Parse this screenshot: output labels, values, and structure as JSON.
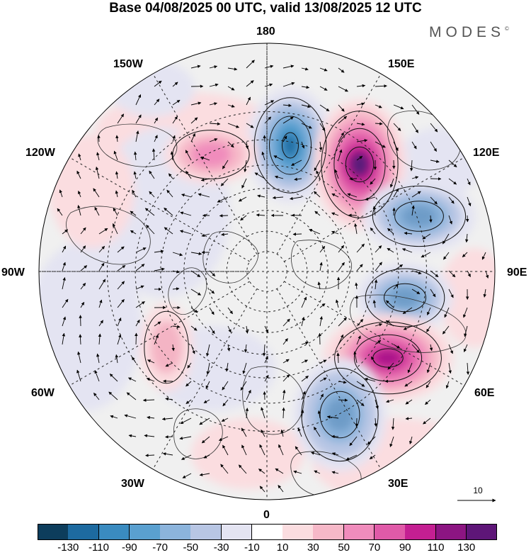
{
  "title": "Base 04/08/2025 00 UTC, valid 13/08/2025 12 UTC",
  "brand": {
    "name": "MODES",
    "mark": "©"
  },
  "map": {
    "projection": "north-polar-stereographic",
    "longitude_labels": {
      "lon_180": "180",
      "lon_150e": "150E",
      "lon_120e": "120E",
      "lon_90e": "90E",
      "lon_60e": "60E",
      "lon_30e": "30E",
      "lon_0": "0",
      "lon_30w": "30W",
      "lon_60w": "60W",
      "lon_90w": "90W",
      "lon_120w": "120W",
      "lon_150w": "150W"
    },
    "reference_vector": {
      "label": "10"
    },
    "anomaly_centers": [
      {
        "name": "low-east-siberian-sea",
        "value": -130,
        "color": "#1d6aa0"
      },
      {
        "name": "high-east-siberia",
        "value": 130,
        "color": "#5a1a7a"
      },
      {
        "name": "low-central-siberia",
        "value": -70,
        "color": "#6e9cc8"
      },
      {
        "name": "low-west-siberia",
        "value": -70,
        "color": "#6e9cc8"
      },
      {
        "name": "high-urals",
        "value": 110,
        "color": "#a8168a"
      },
      {
        "name": "low-europe",
        "value": -70,
        "color": "#6e9cc8"
      },
      {
        "name": "high-alaska",
        "value": 50,
        "color": "#f08cbc"
      },
      {
        "name": "high-greenland-sea",
        "value": 30,
        "color": "#f4b4c4"
      }
    ]
  },
  "colorbar": {
    "colors": [
      "#0d3d5c",
      "#1d6aa0",
      "#3a8bc0",
      "#5aa0d0",
      "#8cb4dc",
      "#b8c6e4",
      "#e4e4f2",
      "#ffffff",
      "#fbdde0",
      "#f6b8c8",
      "#f08cbc",
      "#e05aa8",
      "#c41f92",
      "#8c1582",
      "#5e1678"
    ],
    "ticks": [
      "-130",
      "-110",
      "-90",
      "-70",
      "-50",
      "-30",
      "-10",
      "10",
      "30",
      "50",
      "70",
      "90",
      "110",
      "130"
    ]
  }
}
